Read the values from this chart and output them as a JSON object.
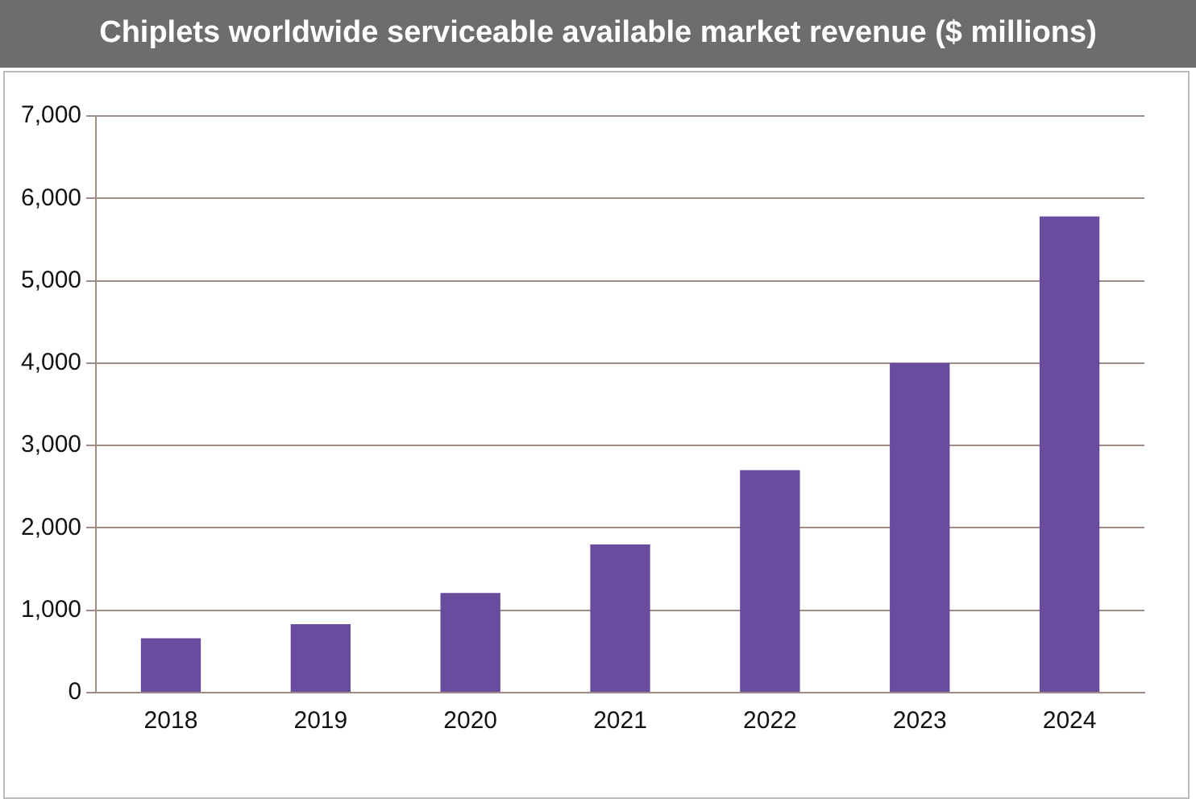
{
  "chart_data": {
    "type": "bar",
    "title": "Chiplets worldwide serviceable available market revenue ($ millions)",
    "categories": [
      "2018",
      "2019",
      "2020",
      "2021",
      "2022",
      "2023",
      "2024"
    ],
    "values": [
      660,
      830,
      1210,
      1800,
      2700,
      4000,
      5780
    ],
    "color": "#6a4c9f",
    "ylim": [
      0,
      7000
    ],
    "yticks": [
      {
        "value": 0,
        "label": "0"
      },
      {
        "value": 1000,
        "label": "1,000"
      },
      {
        "value": 2000,
        "label": "2,000"
      },
      {
        "value": 3000,
        "label": "3,000"
      },
      {
        "value": 4000,
        "label": "4,000"
      },
      {
        "value": 5000,
        "label": "5,000"
      },
      {
        "value": 6000,
        "label": "6,000"
      },
      {
        "value": 7000,
        "label": "7,000"
      }
    ],
    "grid": "y"
  }
}
